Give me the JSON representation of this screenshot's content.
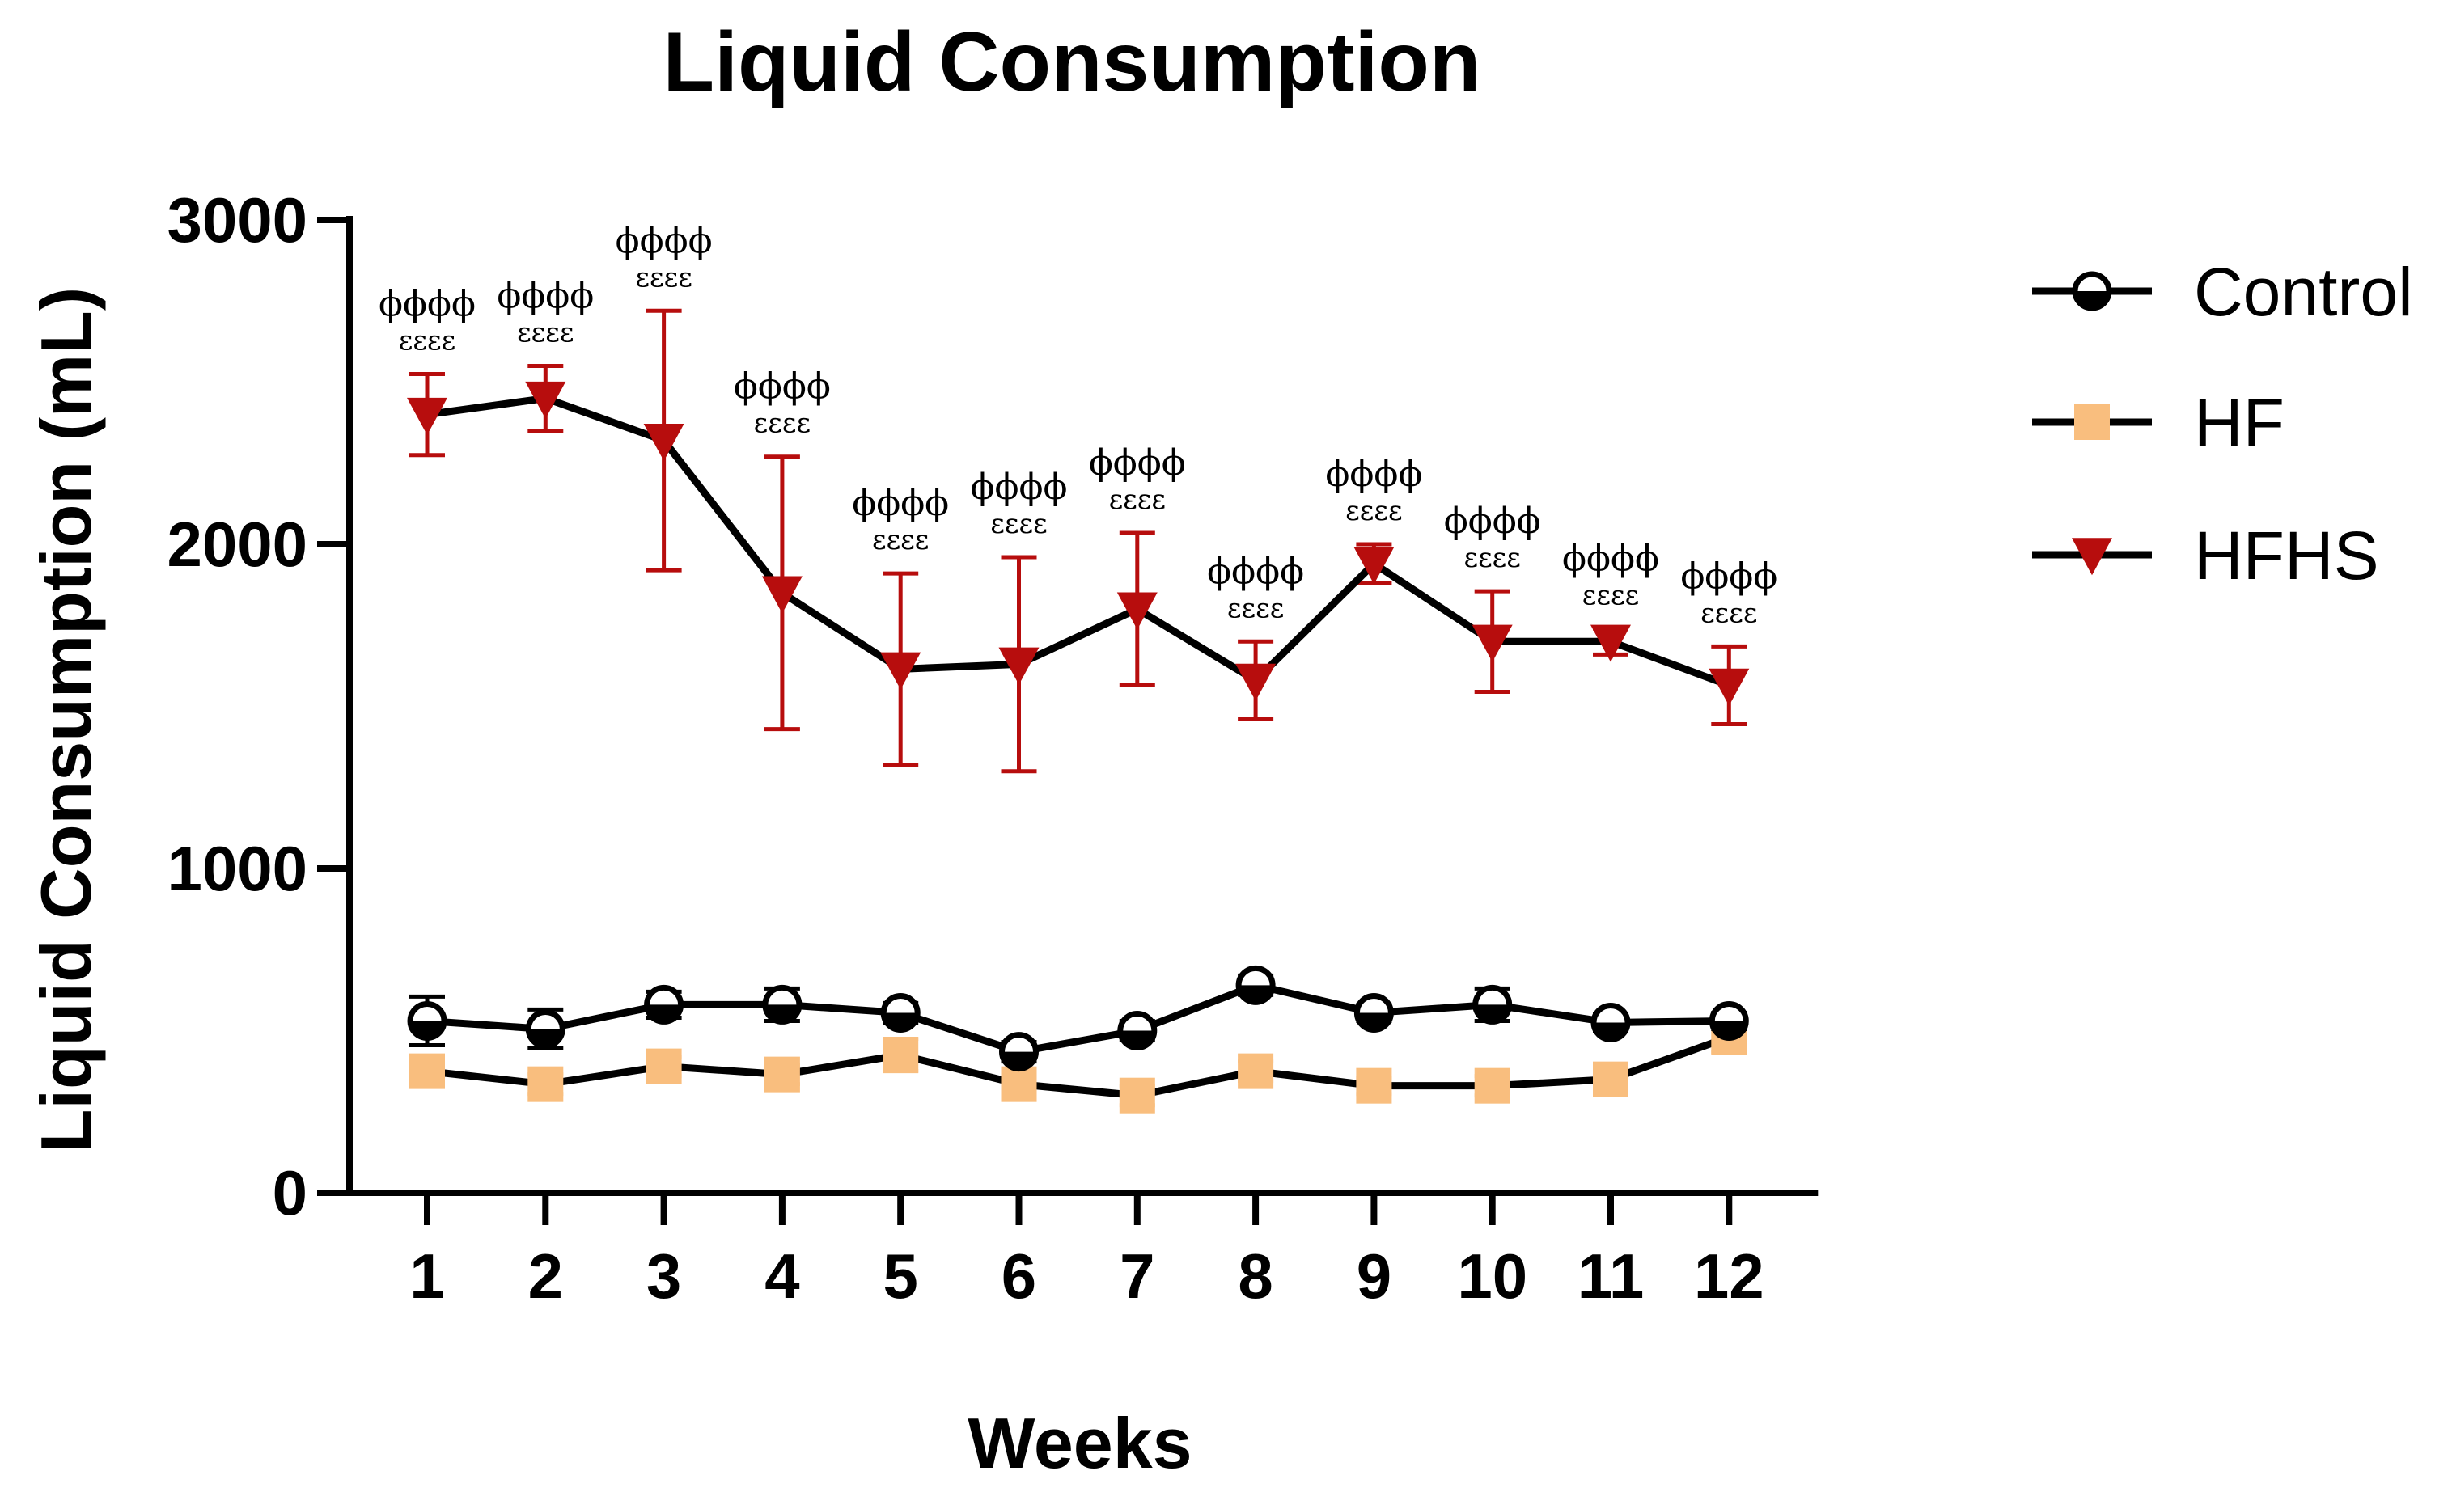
{
  "chart_data": {
    "type": "line",
    "title": "Liquid Consumption",
    "xlabel": "Weeks",
    "ylabel": "Liquid Consumption (mL)",
    "ylim": [
      0,
      3000
    ],
    "yticks": [
      0,
      1000,
      2000,
      3000
    ],
    "categories": [
      "1",
      "2",
      "3",
      "4",
      "5",
      "6",
      "7",
      "8",
      "9",
      "10",
      "11",
      "12"
    ],
    "legend_position": "right",
    "series": [
      {
        "name": "Control",
        "color": "#000000",
        "marker": "circle-half",
        "values": [
          530,
          505,
          580,
          580,
          555,
          435,
          500,
          640,
          555,
          580,
          525,
          530
        ],
        "errors": [
          75,
          60,
          40,
          50,
          30,
          30,
          30,
          30,
          25,
          50,
          25,
          25
        ]
      },
      {
        "name": "HF",
        "color": "#F9BE7E",
        "marker": "square",
        "values": [
          375,
          335,
          390,
          365,
          425,
          335,
          300,
          375,
          330,
          330,
          350,
          480
        ],
        "errors": [
          30,
          30,
          30,
          30,
          50,
          30,
          30,
          30,
          25,
          30,
          25,
          45
        ]
      },
      {
        "name": "HFHS",
        "color": "#B70D0D",
        "marker": "triangle-down",
        "values": [
          2400,
          2450,
          2320,
          1850,
          1615,
          1630,
          1800,
          1580,
          1940,
          1700,
          1700,
          1565
        ],
        "errors": [
          125,
          100,
          400,
          420,
          295,
          330,
          235,
          120,
          60,
          155,
          40,
          120
        ]
      }
    ],
    "annotations": [
      {
        "x": "1",
        "top": "ϕϕϕϕ",
        "bottom": "εεεε"
      },
      {
        "x": "2",
        "top": "ϕϕϕϕ",
        "bottom": "εεεε"
      },
      {
        "x": "3",
        "top": "ϕϕϕϕ",
        "bottom": "εεεε"
      },
      {
        "x": "4",
        "top": "ϕϕϕϕ",
        "bottom": "εεεε"
      },
      {
        "x": "5",
        "top": "ϕϕϕϕ",
        "bottom": "εεεε"
      },
      {
        "x": "6",
        "top": "ϕϕϕϕ",
        "bottom": "εεεε"
      },
      {
        "x": "7",
        "top": "ϕϕϕϕ",
        "bottom": "εεεε"
      },
      {
        "x": "8",
        "top": "ϕϕϕϕ",
        "bottom": "εεεε"
      },
      {
        "x": "9",
        "top": "ϕϕϕϕ",
        "bottom": "εεεε"
      },
      {
        "x": "10",
        "top": "ϕϕϕϕ",
        "bottom": "εεεε"
      },
      {
        "x": "11",
        "top": "ϕϕϕϕ",
        "bottom": "εεεε"
      },
      {
        "x": "12",
        "top": "ϕϕϕϕ",
        "bottom": "εεεε"
      }
    ]
  }
}
